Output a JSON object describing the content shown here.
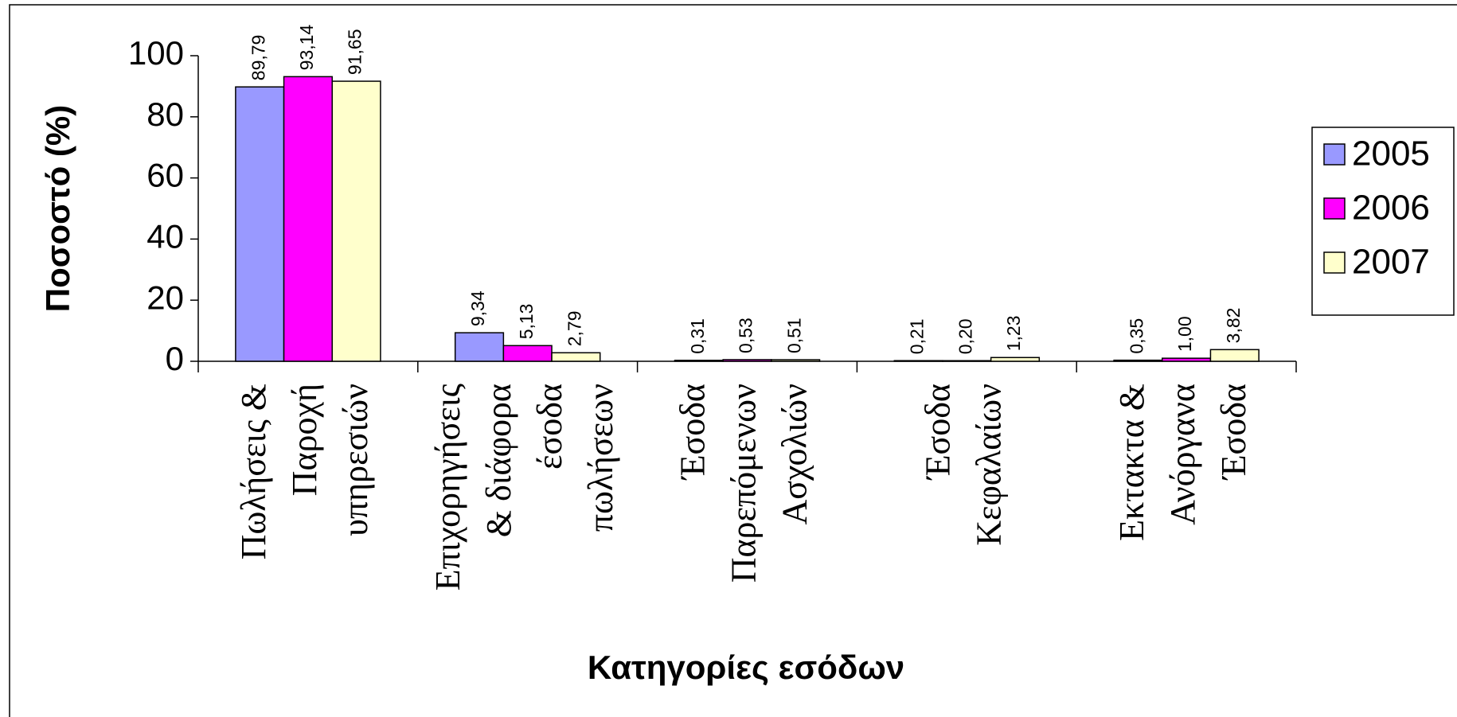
{
  "chart_data": {
    "type": "bar",
    "y_label": "Ποσοστό (%)",
    "x_label": "Κατηγορίες εσόδων",
    "categories": [
      [
        "Πωλήσεις &",
        "Παροχή",
        "υπηρεσιών"
      ],
      [
        "Επιχορηγήσεις",
        "& διάφορα",
        "έσοδα",
        "πωλήσεων"
      ],
      [
        "Έσοδα",
        "Παρεπόμενων",
        "Ασχολιών"
      ],
      [
        "Έσοδα",
        "Κεφαλαίων"
      ],
      [
        "Εκτακτα &",
        "Ανόργανα",
        "Έσοδα"
      ]
    ],
    "series": [
      {
        "name": "2005",
        "color": "#9999ff",
        "values": [
          89.79,
          9.34,
          0.31,
          0.21,
          0.35
        ],
        "value_labels": [
          "89,79",
          "9,34",
          "0,31",
          "0,21",
          "0,35"
        ]
      },
      {
        "name": "2006",
        "color": "#ff00ff",
        "values": [
          93.14,
          5.13,
          0.53,
          0.2,
          1.0
        ],
        "value_labels": [
          "93,14",
          "5,13",
          "0,53",
          "0,20",
          "1,00"
        ]
      },
      {
        "name": "2007",
        "color": "#ffffcc",
        "values": [
          91.65,
          2.79,
          0.51,
          1.23,
          3.82
        ],
        "value_labels": [
          "91,65",
          "2,79",
          "0,51",
          "1,23",
          "3,82"
        ]
      }
    ],
    "ylim": [
      0,
      100
    ],
    "yticks": [
      0,
      20,
      40,
      60,
      80,
      100
    ],
    "legend": "right",
    "grid": false
  }
}
